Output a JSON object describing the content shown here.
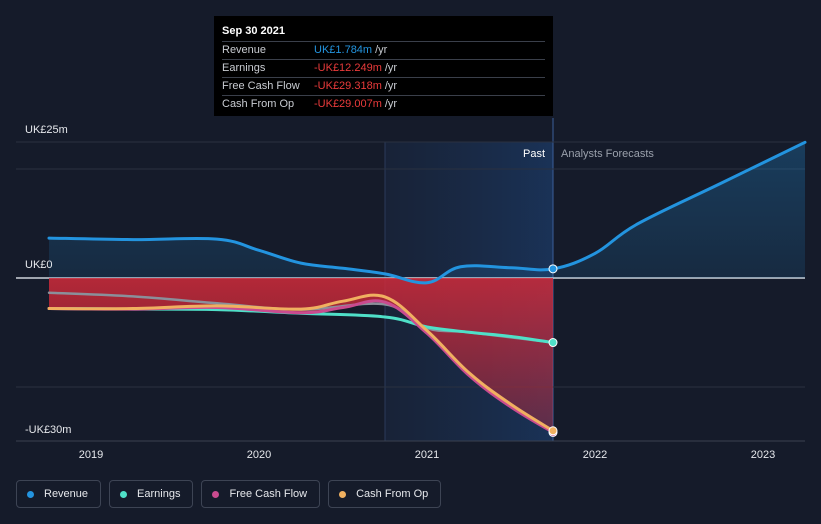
{
  "chart_data": {
    "type": "line",
    "x_axis": {
      "ticks": [
        "2019",
        "2020",
        "2021",
        "2022",
        "2023"
      ],
      "range": [
        2018.75,
        2023.25
      ]
    },
    "y_axis": {
      "min_label": "-UK£30m",
      "zero_label": "UK£0",
      "max_label": "UK£25m",
      "range": [
        -30,
        25
      ]
    },
    "regions": {
      "past": "Past",
      "forecast": "Analysts Forecasts"
    },
    "series": [
      {
        "key": "revenue",
        "name": "Revenue",
        "color": "#2394df",
        "points": [
          [
            2018.75,
            7.8
          ],
          [
            2019.25,
            7.5
          ],
          [
            2019.75,
            7.6
          ],
          [
            2020.0,
            5.4
          ],
          [
            2020.25,
            2.9
          ],
          [
            2020.5,
            1.9
          ],
          [
            2020.75,
            0.8
          ],
          [
            2021.0,
            -0.9
          ],
          [
            2021.2,
            2.2
          ],
          [
            2021.5,
            2.0
          ],
          [
            2021.75,
            1.784
          ],
          [
            2022.0,
            4.8
          ],
          [
            2022.25,
            10.5
          ],
          [
            2022.75,
            18.5
          ],
          [
            2023.25,
            26.5
          ]
        ]
      },
      {
        "key": "earnings",
        "name": "Earnings",
        "color": "#4fe0c8",
        "points": [
          [
            2018.75,
            -5.8
          ],
          [
            2019.25,
            -5.9
          ],
          [
            2019.75,
            -6.0
          ],
          [
            2020.25,
            -6.7
          ],
          [
            2020.75,
            -7.4
          ],
          [
            2021.0,
            -9.3
          ],
          [
            2021.25,
            -10.3
          ],
          [
            2021.5,
            -11.1
          ],
          [
            2021.75,
            -12.249
          ]
        ]
      },
      {
        "key": "fcf",
        "name": "Free Cash Flow",
        "color": "#c94b8f",
        "points": [
          [
            2018.75,
            -5.8
          ],
          [
            2019.25,
            -5.9
          ],
          [
            2019.75,
            -5.6
          ],
          [
            2020.25,
            -6.6
          ],
          [
            2020.5,
            -5.6
          ],
          [
            2020.75,
            -4.6
          ],
          [
            2021.0,
            -10.5
          ],
          [
            2021.25,
            -18.5
          ],
          [
            2021.5,
            -24.5
          ],
          [
            2021.75,
            -29.318
          ]
        ]
      },
      {
        "key": "cfo",
        "name": "Cash From Op",
        "color": "#f0b060",
        "points": [
          [
            2018.75,
            -5.8
          ],
          [
            2019.25,
            -5.8
          ],
          [
            2019.75,
            -5.3
          ],
          [
            2020.25,
            -5.9
          ],
          [
            2020.5,
            -4.4
          ],
          [
            2020.75,
            -3.6
          ],
          [
            2021.0,
            -10.0
          ],
          [
            2021.25,
            -18.0
          ],
          [
            2021.5,
            -24.0
          ],
          [
            2021.75,
            -29.007
          ]
        ]
      }
    ],
    "earnings_history": [
      [
        2018.75,
        -2.8
      ],
      [
        2019.25,
        -3.5
      ],
      [
        2019.75,
        -4.8
      ],
      [
        2020.25,
        -6.0
      ],
      [
        2020.75,
        -5.0
      ],
      [
        2021.0,
        -9.5
      ],
      [
        2021.25,
        -10.3
      ],
      [
        2021.75,
        -12.249
      ]
    ]
  },
  "tooltip": {
    "date": "Sep 30 2021",
    "rows": [
      {
        "name": "Revenue",
        "value": "UK£1.784m",
        "unit": "/yr",
        "color": "#2394df"
      },
      {
        "name": "Earnings",
        "value": "-UK£12.249m",
        "unit": "/yr",
        "color": "#ea3b3b"
      },
      {
        "name": "Free Cash Flow",
        "value": "-UK£29.318m",
        "unit": "/yr",
        "color": "#ea3b3b"
      },
      {
        "name": "Cash From Op",
        "value": "-UK£29.007m",
        "unit": "/yr",
        "color": "#ea3b3b"
      }
    ]
  },
  "legend": [
    {
      "key": "revenue",
      "label": "Revenue",
      "color": "#2394df"
    },
    {
      "key": "earnings",
      "label": "Earnings",
      "color": "#4fe0c8"
    },
    {
      "key": "fcf",
      "label": "Free Cash Flow",
      "color": "#c94b8f"
    },
    {
      "key": "cfo",
      "label": "Cash From Op",
      "color": "#f0b060"
    }
  ]
}
